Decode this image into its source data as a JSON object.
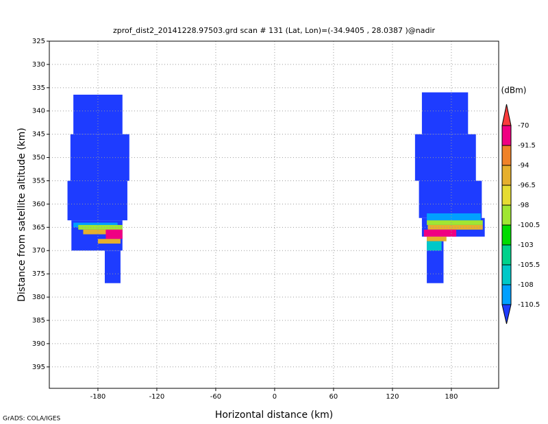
{
  "chart_data": {
    "type": "heatmap",
    "title": "zprof_dist2_20141228.97503.grd  scan # 131  (Lat, Lon)=(-34.9405 , 28.0387 )@nadir",
    "x_label": "Horizontal distance (km)",
    "y_label": "Distance from satellite altitude (km)",
    "colorbar_label": "(dBm)",
    "credit": "GrADS: COLA/IGES",
    "xlim": [
      -229.5,
      228.2
    ],
    "ylim": [
      325,
      399.6
    ],
    "y_inverted": true,
    "grid": true,
    "xticks": [
      -180,
      -120,
      -60,
      0,
      60,
      120,
      180
    ],
    "yticks": [
      325,
      330,
      335,
      340,
      345,
      350,
      355,
      360,
      365,
      370,
      375,
      380,
      385,
      390,
      395
    ],
    "levels": [
      -110.5,
      -108,
      -105.5,
      -103,
      -100.5,
      -98,
      -96.5,
      -94,
      -91.5,
      -70
    ],
    "colors": [
      "#1e3cff",
      "#00a0ff",
      "#00c8c8",
      "#00d28c",
      "#00dc00",
      "#a0e632",
      "#e6dc32",
      "#e6af2d",
      "#f08228",
      "#f00082",
      "#fa3c3c"
    ],
    "cells": [
      {
        "x": [
          -205,
          -155
        ],
        "y": [
          336.5,
          345
        ],
        "value": -115
      },
      {
        "x": [
          -208,
          -148
        ],
        "y": [
          345,
          355
        ],
        "value": -115
      },
      {
        "x": [
          -211,
          -150
        ],
        "y": [
          355,
          363.5
        ],
        "value": -115
      },
      {
        "x": [
          -207,
          -155
        ],
        "y": [
          363.5,
          370
        ],
        "value": -115
      },
      {
        "x": [
          -173,
          -157
        ],
        "y": [
          370,
          377
        ],
        "value": -115
      },
      {
        "x": [
          -205,
          -160
        ],
        "y": [
          364,
          365
        ],
        "value": -109
      },
      {
        "x": [
          -200,
          -155
        ],
        "y": [
          364.5,
          365.5
        ],
        "value": -99
      },
      {
        "x": [
          -195,
          -155
        ],
        "y": [
          365.5,
          366.5
        ],
        "value": -95
      },
      {
        "x": [
          -172,
          -155
        ],
        "y": [
          365.5,
          367.5
        ],
        "value": -80
      },
      {
        "x": [
          -180,
          -157
        ],
        "y": [
          367.5,
          368.5
        ],
        "value": -95
      },
      {
        "x": [
          150,
          197
        ],
        "y": [
          336,
          345
        ],
        "value": -115
      },
      {
        "x": [
          143,
          205
        ],
        "y": [
          345,
          355
        ],
        "value": -115
      },
      {
        "x": [
          147,
          211
        ],
        "y": [
          355,
          363
        ],
        "value": -115
      },
      {
        "x": [
          150,
          214
        ],
        "y": [
          363,
          367
        ],
        "value": -115
      },
      {
        "x": [
          155,
          172
        ],
        "y": [
          367,
          377
        ],
        "value": -115
      },
      {
        "x": [
          155,
          210
        ],
        "y": [
          362,
          363.5
        ],
        "value": -109
      },
      {
        "x": [
          155,
          212
        ],
        "y": [
          363.5,
          364.5
        ],
        "value": -99
      },
      {
        "x": [
          156,
          212
        ],
        "y": [
          364.5,
          365.5
        ],
        "value": -95
      },
      {
        "x": [
          152,
          185
        ],
        "y": [
          365.5,
          367
        ],
        "value": -80
      },
      {
        "x": [
          155,
          175
        ],
        "y": [
          367,
          368
        ],
        "value": -95
      },
      {
        "x": [
          155,
          170
        ],
        "y": [
          368,
          370
        ],
        "value": -107
      }
    ]
  }
}
